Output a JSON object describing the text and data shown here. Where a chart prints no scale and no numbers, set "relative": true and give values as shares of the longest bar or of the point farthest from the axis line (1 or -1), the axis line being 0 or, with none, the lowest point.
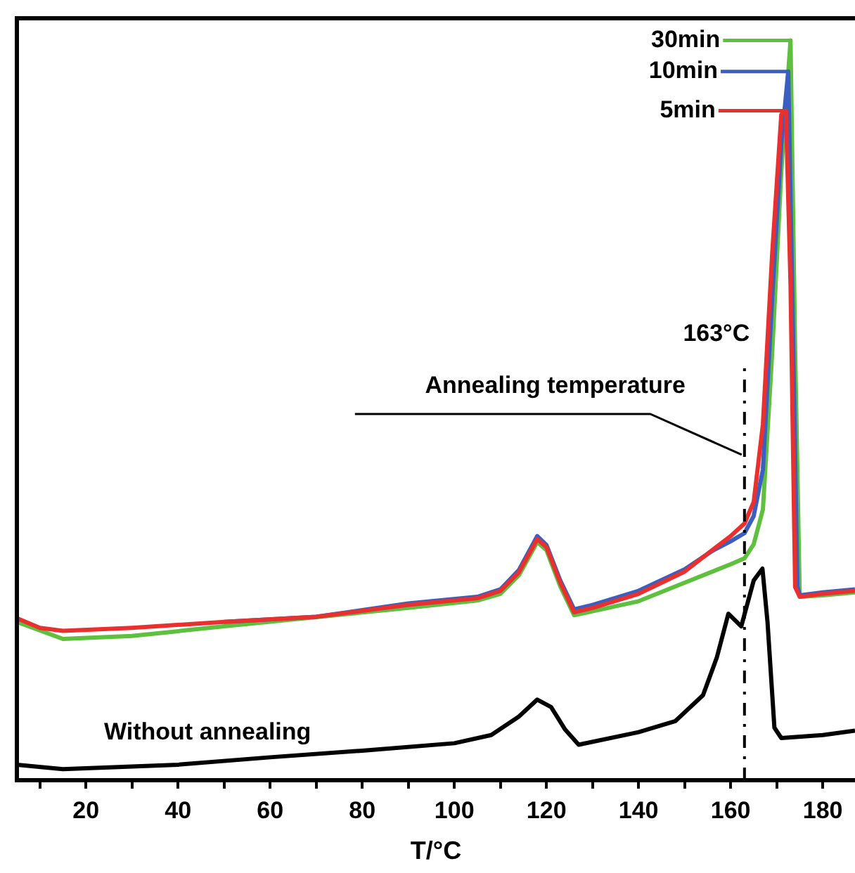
{
  "chart_data": {
    "type": "line",
    "xlabel": "T/°C",
    "relative": true,
    "xlim": [
      5,
      187
    ],
    "xticks": [
      {
        "value": 10,
        "label": null
      },
      20,
      {
        "value": 30,
        "label": null
      },
      40,
      {
        "value": 50,
        "label": null
      },
      60,
      {
        "value": 70,
        "label": null
      },
      80,
      {
        "value": 90,
        "label": null
      },
      100,
      {
        "value": 110,
        "label": null
      },
      120,
      {
        "value": 130,
        "label": null
      },
      140,
      {
        "value": 150,
        "label": null
      },
      160,
      {
        "value": 170,
        "label": null
      },
      180
    ],
    "marker": "none",
    "line_style": "solid",
    "legend": "top right",
    "series": [
      {
        "name": "Without annealing",
        "color": "#000000",
        "x": [
          5,
          15,
          40,
          60,
          80,
          100,
          108,
          114,
          118,
          121,
          124,
          127,
          140,
          148,
          154,
          157,
          159.5,
          162.3,
          165,
          166.9,
          168,
          169.5,
          171,
          180,
          187
        ],
        "values": [
          0.021,
          0.015,
          0.021,
          0.031,
          0.04,
          0.05,
          0.061,
          0.086,
          0.109,
          0.099,
          0.069,
          0.048,
          0.065,
          0.08,
          0.115,
          0.166,
          0.225,
          0.208,
          0.27,
          0.286,
          0.214,
          0.071,
          0.057,
          0.061,
          0.067
        ]
      },
      {
        "name": "30min",
        "color": "#5fbf3f",
        "x": [
          5,
          15,
          30,
          50,
          90,
          105,
          110,
          114,
          118,
          120,
          123,
          126,
          140,
          150,
          160,
          163,
          165,
          167,
          169,
          171,
          173,
          174,
          175,
          180,
          187
        ],
        "values": [
          0.214,
          0.191,
          0.195,
          0.208,
          0.233,
          0.243,
          0.252,
          0.277,
          0.322,
          0.311,
          0.262,
          0.223,
          0.242,
          0.267,
          0.292,
          0.3,
          0.319,
          0.366,
          0.576,
          0.824,
          1.0,
          0.58,
          0.248,
          0.25,
          0.254
        ]
      },
      {
        "name": "10min",
        "color": "#3a5fc0",
        "x": [
          50,
          70,
          90,
          105,
          110,
          114,
          118,
          120,
          123,
          126,
          130,
          140,
          150,
          156,
          160,
          163,
          165,
          167,
          169,
          171,
          172.5,
          173.5,
          174.5,
          175,
          180,
          187
        ],
        "values": [
          0.214,
          0.221,
          0.239,
          0.248,
          0.258,
          0.284,
          0.33,
          0.318,
          0.27,
          0.231,
          0.237,
          0.256,
          0.285,
          0.31,
          0.323,
          0.334,
          0.357,
          0.42,
          0.65,
          0.86,
          0.958,
          0.62,
          0.262,
          0.25,
          0.254,
          0.258
        ]
      },
      {
        "name": "5min",
        "color": "#e8312f",
        "x": [
          5,
          10,
          15,
          30,
          50,
          70,
          90,
          105,
          110,
          114,
          118,
          120,
          123,
          126,
          130,
          140,
          150,
          156,
          160,
          163,
          165,
          167,
          169,
          171,
          172,
          173,
          174,
          175,
          180,
          187
        ],
        "values": [
          0.219,
          0.206,
          0.202,
          0.206,
          0.214,
          0.221,
          0.237,
          0.246,
          0.256,
          0.281,
          0.326,
          0.315,
          0.267,
          0.227,
          0.233,
          0.252,
          0.282,
          0.311,
          0.33,
          0.347,
          0.376,
          0.481,
          0.71,
          0.9,
          0.905,
          0.67,
          0.261,
          0.248,
          0.252,
          0.256
        ]
      }
    ],
    "ref_lines": [
      {
        "axis": "x",
        "value": 163,
        "label": "163°C",
        "line_style": "dashed",
        "color": "#000000"
      }
    ],
    "annotations": [
      {
        "text": "Annealing temperature",
        "x": 163,
        "y": 0.44
      }
    ]
  }
}
